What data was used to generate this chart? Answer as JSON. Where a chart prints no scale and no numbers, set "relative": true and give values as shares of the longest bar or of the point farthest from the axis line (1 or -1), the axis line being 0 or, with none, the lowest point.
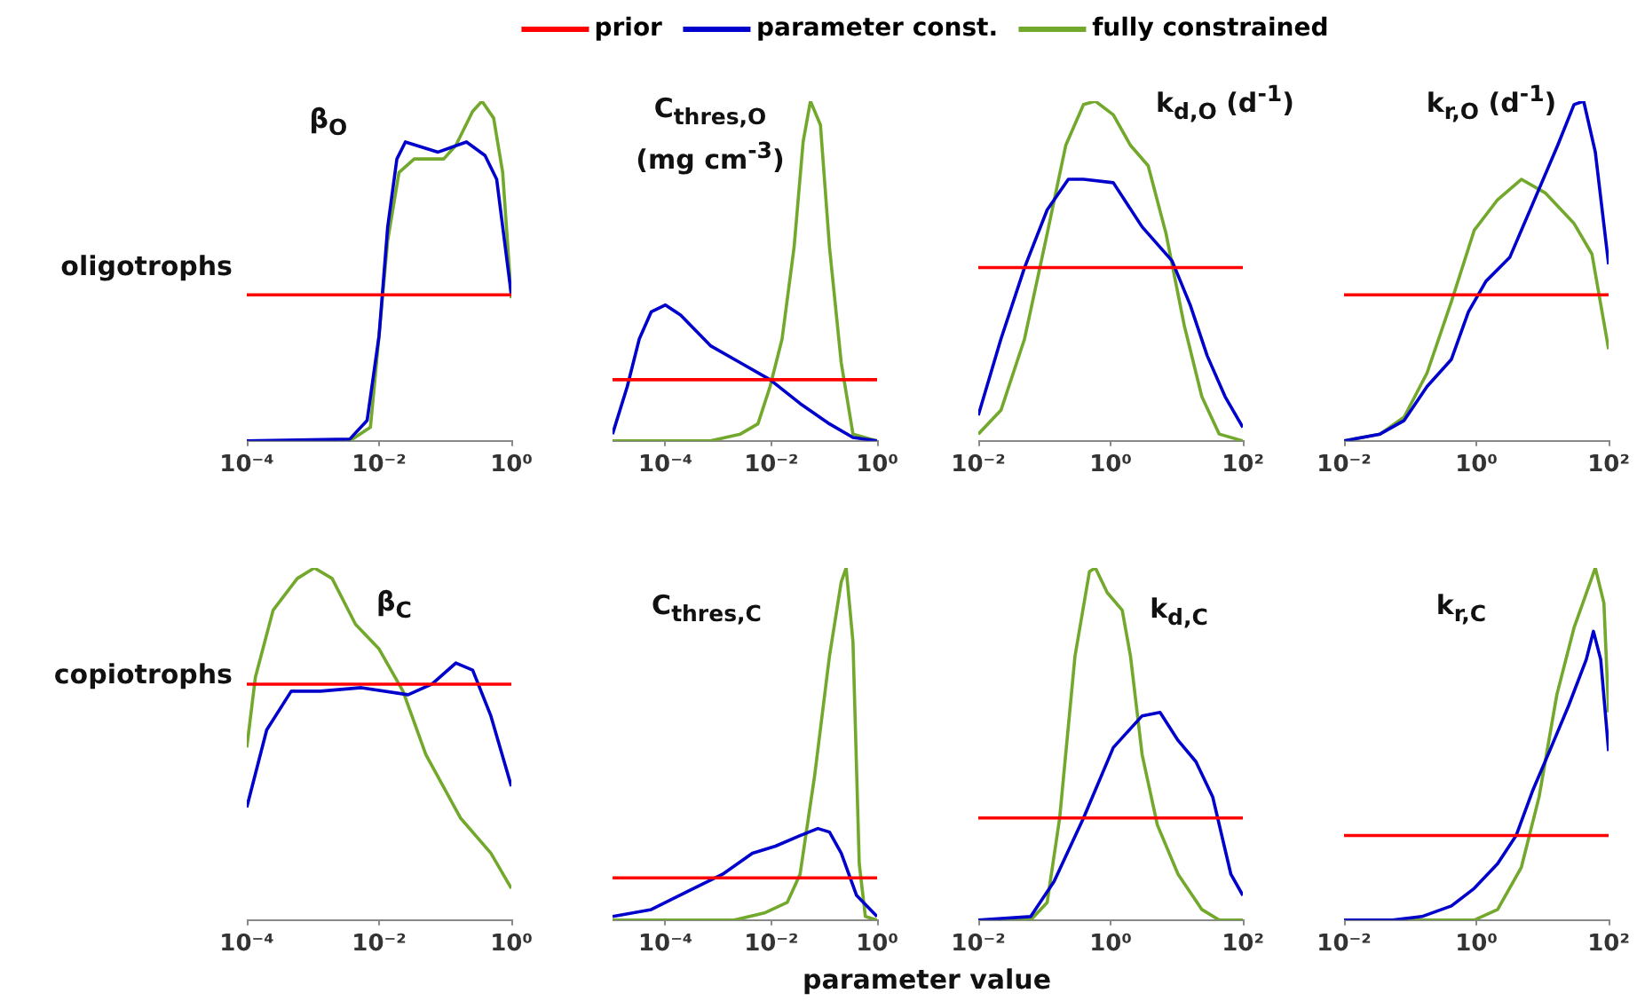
{
  "chart_data": [
    {
      "type": "line",
      "title": "β$_{O}$",
      "ylabel": "oligotrophs",
      "relative": true,
      "log": "x",
      "legend": "top",
      "xlim": [
        0.0001,
        1
      ],
      "xticks": [
        {
          "value": 0.0001,
          "label": "10⁻⁴"
        },
        {
          "value": 0.01,
          "label": "10⁻²"
        },
        {
          "value": 1,
          "label": "10⁰"
        }
      ],
      "series": [
        {
          "name": "prior",
          "color": "#ff0000",
          "x": [
            0.0001,
            1
          ],
          "values": [
            0.43,
            0.43
          ]
        },
        {
          "name": "parameter const.",
          "color": "#0000cc",
          "x": [
            0.0001,
            0.0036,
            0.0066,
            0.01,
            0.0135,
            0.0186,
            0.025,
            0.078,
            0.21,
            0.4,
            0.6,
            0.74,
            1
          ],
          "values": [
            0,
            0.005,
            0.06,
            0.31,
            0.63,
            0.83,
            0.88,
            0.85,
            0.88,
            0.84,
            0.77,
            0.63,
            0.43
          ]
        },
        {
          "name": "fully constrained",
          "color": "#72a82b",
          "x": [
            0.0001,
            0.0036,
            0.0074,
            0.01,
            0.0135,
            0.02,
            0.034,
            0.095,
            0.145,
            0.26,
            0.36,
            0.54,
            0.74,
            1
          ],
          "values": [
            0,
            0,
            0.04,
            0.31,
            0.59,
            0.79,
            0.83,
            0.83,
            0.87,
            0.97,
            1,
            0.95,
            0.79,
            0.42
          ]
        }
      ]
    },
    {
      "type": "line",
      "title": "C$_{thres,O}$ (mg cm$^{-3}$)",
      "relative": true,
      "log": "x",
      "xlim": [
        1e-05,
        1
      ],
      "xticks": [
        {
          "value": 0.0001,
          "label": "10⁻⁴"
        },
        {
          "value": 0.01,
          "label": "10⁻²"
        },
        {
          "value": 1,
          "label": "10⁰"
        }
      ],
      "series": [
        {
          "color": "#ff0000",
          "x": [
            1e-05,
            1
          ],
          "values": [
            0.18,
            0.18
          ]
        },
        {
          "color": "#0000cc",
          "x": [
            1e-05,
            1.9e-05,
            3.2e-05,
            5.4e-05,
            0.0001,
            0.000195,
            0.00071,
            0.0026,
            0.0095,
            0.035,
            0.126,
            0.35,
            1
          ],
          "values": [
            0.02,
            0.16,
            0.3,
            0.38,
            0.4,
            0.37,
            0.28,
            0.23,
            0.18,
            0.11,
            0.05,
            0.01,
            0
          ]
        },
        {
          "color": "#72a82b",
          "x": [
            1e-05,
            0.00071,
            0.0026,
            0.0056,
            0.0095,
            0.016,
            0.027,
            0.04,
            0.055,
            0.085,
            0.126,
            0.21,
            0.35,
            1
          ],
          "values": [
            0,
            0,
            0.02,
            0.05,
            0.16,
            0.3,
            0.57,
            0.88,
            1,
            0.93,
            0.57,
            0.23,
            0.02,
            0
          ]
        }
      ]
    },
    {
      "type": "line",
      "title": "k$_{d,O}$ (d$^{-1}$)",
      "relative": true,
      "log": "x",
      "xlim": [
        0.01,
        100
      ],
      "xticks": [
        {
          "value": 0.01,
          "label": "10⁻²"
        },
        {
          "value": 1,
          "label": "10⁰"
        },
        {
          "value": 100,
          "label": "10²"
        }
      ],
      "series": [
        {
          "color": "#ff0000",
          "x": [
            0.01,
            100
          ],
          "values": [
            0.51,
            0.51
          ]
        },
        {
          "color": "#0000cc",
          "x": [
            0.01,
            0.022,
            0.05,
            0.11,
            0.23,
            0.39,
            1.1,
            3,
            8.5,
            16,
            29,
            54,
            100
          ],
          "values": [
            0.075,
            0.3,
            0.51,
            0.68,
            0.77,
            0.77,
            0.76,
            0.63,
            0.53,
            0.4,
            0.25,
            0.13,
            0.04
          ]
        },
        {
          "color": "#72a82b",
          "x": [
            0.01,
            0.022,
            0.05,
            0.11,
            0.21,
            0.39,
            0.59,
            1.1,
            2,
            3.7,
            6.9,
            13,
            24,
            44,
            100
          ],
          "values": [
            0.02,
            0.09,
            0.3,
            0.61,
            0.87,
            0.99,
            1,
            0.96,
            0.87,
            0.81,
            0.61,
            0.34,
            0.13,
            0.02,
            0
          ]
        }
      ]
    },
    {
      "type": "line",
      "title": "k$_{r,O}$ (d$^{-1}$)",
      "relative": true,
      "log": "x",
      "xlim": [
        0.01,
        100
      ],
      "xticks": [
        {
          "value": 0.01,
          "label": "10⁻²"
        },
        {
          "value": 1,
          "label": "10⁰"
        },
        {
          "value": 100,
          "label": "10²"
        }
      ],
      "series": [
        {
          "color": "#ff0000",
          "x": [
            0.01,
            100
          ],
          "values": [
            0.43,
            0.43
          ]
        },
        {
          "color": "#0000cc",
          "x": [
            0.01,
            0.035,
            0.081,
            0.18,
            0.42,
            0.76,
            1.4,
            3.2,
            7.2,
            17,
            30,
            42,
            63,
            100
          ],
          "values": [
            0,
            0.02,
            0.06,
            0.16,
            0.24,
            0.38,
            0.47,
            0.54,
            0.7,
            0.87,
            0.99,
            1,
            0.85,
            0.52
          ]
        },
        {
          "color": "#72a82b",
          "x": [
            0.01,
            0.035,
            0.081,
            0.18,
            0.42,
            0.93,
            2.1,
            4.8,
            11,
            30,
            56,
            100
          ],
          "values": [
            0,
            0.02,
            0.07,
            0.2,
            0.41,
            0.62,
            0.71,
            0.77,
            0.73,
            0.64,
            0.55,
            0.27
          ]
        }
      ]
    },
    {
      "type": "line",
      "title": "β$_{C}$",
      "ylabel": "copiotrophs",
      "relative": true,
      "log": "x",
      "xlim": [
        0.0001,
        1
      ],
      "xticks": [
        {
          "value": 0.0001,
          "label": "10⁻⁴"
        },
        {
          "value": 0.01,
          "label": "10⁻²"
        },
        {
          "value": 1,
          "label": "10⁰"
        }
      ],
      "series": [
        {
          "color": "#ff0000",
          "x": [
            0.0001,
            1
          ],
          "values": [
            0.67,
            0.67
          ]
        },
        {
          "color": "#0000cc",
          "x": [
            0.0001,
            0.0002,
            0.00047,
            0.0013,
            0.0054,
            0.0275,
            0.063,
            0.145,
            0.26,
            0.49,
            1
          ],
          "values": [
            0.32,
            0.54,
            0.65,
            0.65,
            0.66,
            0.64,
            0.67,
            0.73,
            0.71,
            0.58,
            0.38
          ]
        },
        {
          "color": "#72a82b",
          "x": [
            0.0001,
            0.000135,
            0.00025,
            0.00058,
            0.00105,
            0.00195,
            0.0044,
            0.01,
            0.023,
            0.051,
            0.17,
            0.49,
            1
          ],
          "values": [
            0.49,
            0.69,
            0.88,
            0.97,
            1,
            0.97,
            0.84,
            0.77,
            0.65,
            0.47,
            0.29,
            0.19,
            0.09
          ]
        }
      ]
    },
    {
      "type": "line",
      "title": "C$_{thres,C}$",
      "xlabel": "parameter value",
      "relative": true,
      "log": "x",
      "xlim": [
        1e-05,
        1
      ],
      "xticks": [
        {
          "value": 0.0001,
          "label": "10⁻⁴"
        },
        {
          "value": 0.01,
          "label": "10⁻²"
        },
        {
          "value": 1,
          "label": "10⁰"
        }
      ],
      "series": [
        {
          "color": "#ff0000",
          "x": [
            1e-05,
            1
          ],
          "values": [
            0.12,
            0.12
          ]
        },
        {
          "color": "#0000cc",
          "x": [
            1e-05,
            5.4e-05,
            0.00025,
            0.0012,
            0.0044,
            0.012,
            0.035,
            0.076,
            0.126,
            0.21,
            0.41,
            1
          ],
          "values": [
            0.01,
            0.03,
            0.08,
            0.13,
            0.19,
            0.21,
            0.24,
            0.26,
            0.25,
            0.19,
            0.07,
            0.01
          ]
        },
        {
          "color": "#72a82b",
          "x": [
            1e-05,
            0.002,
            0.0074,
            0.02,
            0.035,
            0.066,
            0.126,
            0.21,
            0.26,
            0.35,
            0.46,
            0.6,
            1
          ],
          "values": [
            0,
            0,
            0.02,
            0.05,
            0.13,
            0.41,
            0.75,
            0.96,
            1,
            0.79,
            0.16,
            0.01,
            0
          ]
        }
      ]
    },
    {
      "type": "line",
      "title": "k$_{d,C}$",
      "relative": true,
      "log": "x",
      "xlim": [
        0.01,
        100
      ],
      "xticks": [
        {
          "value": 0.01,
          "label": "10⁻²"
        },
        {
          "value": 1,
          "label": "10⁰"
        },
        {
          "value": 100,
          "label": "10²"
        }
      ],
      "series": [
        {
          "color": "#ff0000",
          "x": [
            0.01,
            100
          ],
          "values": [
            0.29,
            0.29
          ]
        },
        {
          "color": "#0000cc",
          "x": [
            0.01,
            0.062,
            0.14,
            0.39,
            1.1,
            3,
            5.6,
            10.5,
            19.5,
            35,
            66,
            100
          ],
          "values": [
            0,
            0.01,
            0.11,
            0.29,
            0.49,
            0.58,
            0.59,
            0.51,
            0.45,
            0.35,
            0.13,
            0.07
          ]
        },
        {
          "color": "#72a82b",
          "x": [
            0.01,
            0.062,
            0.11,
            0.17,
            0.29,
            0.48,
            0.59,
            0.89,
            1.5,
            2,
            3,
            5.1,
            10.5,
            24,
            44,
            100
          ],
          "values": [
            0,
            0,
            0.05,
            0.29,
            0.75,
            0.99,
            1,
            0.93,
            0.88,
            0.75,
            0.47,
            0.27,
            0.13,
            0.03,
            0,
            0
          ]
        }
      ]
    },
    {
      "type": "line",
      "title": "k$_{r,C}$",
      "relative": true,
      "log": "x",
      "xlim": [
        0.01,
        100
      ],
      "xticks": [
        {
          "value": 0.01,
          "label": "10⁻²"
        },
        {
          "value": 1,
          "label": "10⁰"
        },
        {
          "value": 100,
          "label": "10²"
        }
      ],
      "series": [
        {
          "color": "#ff0000",
          "x": [
            0.01,
            100
          ],
          "values": [
            0.24,
            0.24
          ]
        },
        {
          "color": "#0000cc",
          "x": [
            0.01,
            0.054,
            0.15,
            0.42,
            0.93,
            2.1,
            4,
            7.2,
            13.5,
            25,
            46,
            59,
            76,
            100
          ],
          "values": [
            0,
            0,
            0.01,
            0.04,
            0.09,
            0.16,
            0.24,
            0.37,
            0.49,
            0.61,
            0.74,
            0.82,
            0.74,
            0.48
          ]
        },
        {
          "color": "#72a82b",
          "x": [
            0.01,
            0.93,
            2.1,
            4.8,
            8.9,
            16.5,
            30,
            63,
            85,
            100
          ],
          "values": [
            0,
            0,
            0.03,
            0.15,
            0.35,
            0.64,
            0.83,
            1,
            0.9,
            0.59
          ]
        }
      ]
    }
  ]
}
